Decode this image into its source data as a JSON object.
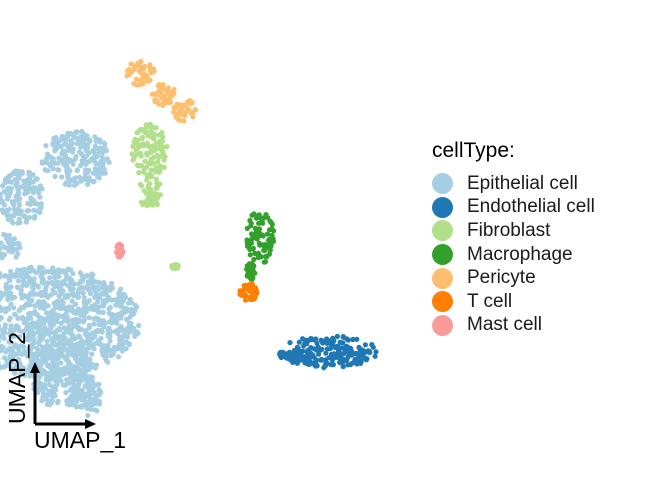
{
  "chart_data": {
    "type": "scatter",
    "xlabel": "UMAP_1",
    "ylabel": "UMAP_2",
    "legend": {
      "title": "cellType:",
      "placement": "right",
      "entries": [
        {
          "label": "Epithelial cell",
          "color": "#A6CEE3"
        },
        {
          "label": "Endothelial cell",
          "color": "#1F78B4"
        },
        {
          "label": "Fibroblast",
          "color": "#B2DF8A"
        },
        {
          "label": "Macrophage",
          "color": "#33A02C"
        },
        {
          "label": "Pericyte",
          "color": "#FDBF6F"
        },
        {
          "label": "T cell",
          "color": "#FF7F00"
        },
        {
          "label": "Mast cell",
          "color": "#FB9A99"
        }
      ]
    },
    "grid": false,
    "axes_style": "arrows",
    "clusters": [
      {
        "cell_type": "Epithelial cell",
        "color": "#A6CEE3",
        "blobs": [
          [
            -8.0,
            -2.6,
            4.2,
            2.4
          ],
          [
            -7.2,
            -4.8,
            1.4,
            1.6
          ],
          [
            -6.1,
            -5.8,
            0.6,
            0.9
          ],
          [
            -9.0,
            2.8,
            1.0,
            1.2
          ],
          [
            -6.6,
            4.5,
            1.5,
            1.2
          ],
          [
            -9.7,
            0.6,
            0.7,
            0.6
          ]
        ]
      },
      {
        "cell_type": "Endothelial cell",
        "color": "#1F78B4",
        "blobs": [
          [
            4.4,
            -3.9,
            2.1,
            0.7
          ],
          [
            3.0,
            -4.1,
            0.9,
            0.3
          ]
        ]
      },
      {
        "cell_type": "Fibroblast",
        "color": "#B2DF8A",
        "blobs": [
          [
            -3.4,
            4.8,
            0.8,
            1.2
          ],
          [
            -3.4,
            3.1,
            0.5,
            0.8
          ],
          [
            -2.3,
            -0.2,
            0.15,
            0.1
          ]
        ]
      },
      {
        "cell_type": "Macrophage",
        "color": "#33A02C",
        "blobs": [
          [
            1.4,
            1.1,
            0.6,
            1.2
          ],
          [
            1.0,
            -0.4,
            0.2,
            0.4
          ]
        ]
      },
      {
        "cell_type": "Pericyte",
        "color": "#FDBF6F",
        "blobs": [
          [
            -3.8,
            8.2,
            0.6,
            0.6
          ],
          [
            -2.8,
            7.3,
            0.5,
            0.5
          ],
          [
            -1.9,
            6.6,
            0.5,
            0.5
          ]
        ]
      },
      {
        "cell_type": "T cell",
        "color": "#FF7F00",
        "blobs": [
          [
            0.9,
            -1.3,
            0.4,
            0.4
          ]
        ]
      },
      {
        "cell_type": "Mast cell",
        "color": "#FB9A99",
        "blobs": [
          [
            -4.7,
            0.5,
            0.15,
            0.3
          ]
        ]
      }
    ]
  }
}
